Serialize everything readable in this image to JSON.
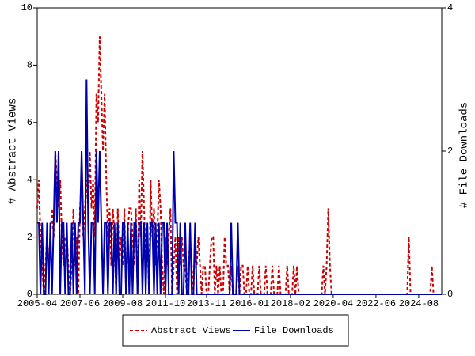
{
  "chart_data": {
    "type": "line",
    "x": [
      "2005-04",
      "2005-05",
      "2005-06",
      "2005-07",
      "2005-08",
      "2005-09",
      "2005-10",
      "2005-11",
      "2005-12",
      "2006-01",
      "2006-02",
      "2006-03",
      "2006-04",
      "2006-05",
      "2006-06",
      "2006-07",
      "2006-08",
      "2006-09",
      "2006-10",
      "2006-11",
      "2006-12",
      "2007-01",
      "2007-02",
      "2007-03",
      "2007-04",
      "2007-05",
      "2007-06",
      "2007-07",
      "2007-08",
      "2007-09",
      "2007-10",
      "2007-11",
      "2007-12",
      "2008-01",
      "2008-02",
      "2008-03",
      "2008-04",
      "2008-05",
      "2008-06",
      "2008-07",
      "2008-08",
      "2008-09",
      "2008-10",
      "2008-11",
      "2008-12",
      "2009-01",
      "2009-02",
      "2009-03",
      "2009-04",
      "2009-05",
      "2009-06",
      "2009-07",
      "2009-08",
      "2009-09",
      "2009-10",
      "2009-11",
      "2009-12",
      "2010-01",
      "2010-02",
      "2010-03",
      "2010-04",
      "2010-05",
      "2010-06",
      "2010-07",
      "2010-08",
      "2010-09",
      "2010-10",
      "2010-11",
      "2010-12",
      "2011-01",
      "2011-02",
      "2011-03",
      "2011-04",
      "2011-05",
      "2011-06",
      "2011-07",
      "2011-08",
      "2011-09",
      "2011-10",
      "2011-11",
      "2011-12",
      "2012-01",
      "2012-02",
      "2012-03",
      "2012-04",
      "2012-05",
      "2012-06",
      "2012-07",
      "2012-08",
      "2012-09",
      "2012-10",
      "2012-11",
      "2012-12",
      "2013-01",
      "2013-02",
      "2013-03",
      "2013-04",
      "2013-05",
      "2013-06",
      "2013-07",
      "2013-08",
      "2013-09",
      "2013-10",
      "2013-11",
      "2013-12",
      "2014-01",
      "2014-02",
      "2014-03",
      "2014-04",
      "2014-05",
      "2014-06",
      "2014-07",
      "2014-08",
      "2014-09",
      "2014-10",
      "2014-11",
      "2014-12",
      "2015-01",
      "2015-02",
      "2015-03",
      "2015-04",
      "2015-05",
      "2015-06",
      "2015-07",
      "2015-08",
      "2015-09",
      "2015-10",
      "2015-11",
      "2015-12",
      "2016-01",
      "2016-02",
      "2016-03",
      "2016-04",
      "2016-05",
      "2016-06",
      "2016-07",
      "2016-08",
      "2016-09",
      "2016-10",
      "2016-11",
      "2016-12",
      "2017-01",
      "2017-02",
      "2017-03",
      "2017-04",
      "2017-05",
      "2017-06",
      "2017-07",
      "2017-08",
      "2017-09",
      "2017-10",
      "2017-11",
      "2017-12",
      "2018-01",
      "2018-02",
      "2018-03",
      "2018-04",
      "2018-05",
      "2018-06",
      "2018-07",
      "2018-08",
      "2018-09",
      "2018-10",
      "2018-11",
      "2018-12",
      "2019-01",
      "2019-02",
      "2019-03",
      "2019-04",
      "2019-05",
      "2019-06",
      "2019-07",
      "2019-08",
      "2019-09",
      "2019-10",
      "2019-11",
      "2019-12",
      "2020-01",
      "2020-02",
      "2020-03",
      "2020-04",
      "2020-05",
      "2020-06",
      "2020-07",
      "2020-08",
      "2020-09",
      "2020-10",
      "2020-11",
      "2020-12",
      "2021-01",
      "2021-02",
      "2021-03",
      "2021-04",
      "2021-05",
      "2021-06",
      "2021-07",
      "2021-08",
      "2021-09",
      "2021-10",
      "2021-11",
      "2021-12",
      "2022-01",
      "2022-02",
      "2022-03",
      "2022-04",
      "2022-05",
      "2022-06",
      "2022-07",
      "2022-08",
      "2022-09",
      "2022-10",
      "2022-11",
      "2022-12",
      "2023-01",
      "2023-02",
      "2023-03",
      "2023-04",
      "2023-05",
      "2023-06",
      "2023-07",
      "2023-08",
      "2023-09",
      "2023-10",
      "2023-11",
      "2023-12",
      "2024-01",
      "2024-02",
      "2024-03",
      "2024-04",
      "2024-05",
      "2024-06",
      "2024-07",
      "2024-08",
      "2024-09",
      "2024-10",
      "2024-11",
      "2024-12",
      "2025-01",
      "2025-02",
      "2025-03",
      "2025-04",
      "2025-05",
      "2025-06",
      "2025-07",
      "2025-08",
      "2025-09",
      "2025-10"
    ],
    "xticks": [
      "2005-04",
      "2007-06",
      "2009-08",
      "2011-10",
      "2013-11",
      "2016-01",
      "2018-02",
      "2020-04",
      "2022-06",
      "2024-08"
    ],
    "ylabel": "# Abstract Views",
    "y2label": "# File Downloads",
    "ylim": [
      0,
      10
    ],
    "yticks": [
      0,
      2,
      4,
      6,
      8,
      10
    ],
    "y2lim": [
      0,
      4
    ],
    "y2ticks": [
      0,
      2,
      4
    ],
    "series": [
      {
        "name": "Abstract Views",
        "color": "#cc0000",
        "dashed": true,
        "values": [
          3,
          4,
          2,
          1,
          0,
          1,
          2,
          1,
          2,
          3,
          2,
          5,
          4,
          3,
          4,
          2,
          1,
          2,
          2,
          1,
          0,
          1,
          3,
          1,
          2,
          0,
          3,
          4,
          2,
          3,
          4,
          3,
          5,
          3,
          4,
          2,
          7,
          6,
          9,
          7,
          5,
          7,
          4,
          2,
          3,
          1,
          3,
          2,
          0,
          3,
          1,
          2,
          1,
          3,
          0,
          2,
          3,
          3,
          2,
          1,
          3,
          0,
          4,
          2,
          5,
          3,
          1,
          2,
          0,
          4,
          2,
          3,
          1,
          2,
          4,
          3,
          1,
          0,
          2,
          1,
          2,
          3,
          0,
          1,
          2,
          0,
          2,
          1,
          2,
          1,
          1,
          0,
          1,
          2,
          1,
          0,
          2,
          1,
          2,
          1,
          0,
          1,
          1,
          0,
          0,
          1,
          2,
          2,
          0,
          1,
          0,
          1,
          0,
          0,
          2,
          1,
          1,
          0,
          1,
          0,
          0,
          0,
          1,
          0,
          1,
          1,
          0,
          0,
          1,
          0,
          0,
          1,
          0,
          0,
          0,
          1,
          0,
          0,
          0,
          1,
          0,
          0,
          0,
          1,
          0,
          0,
          0,
          1,
          0,
          0,
          0,
          0,
          1,
          0,
          0,
          0,
          1,
          0,
          1,
          0,
          0,
          0,
          0,
          0,
          0,
          0,
          0,
          0,
          0,
          0,
          0,
          0,
          0,
          0,
          1,
          0,
          1,
          3,
          1,
          0,
          0,
          0,
          0,
          0,
          0,
          0,
          0,
          0,
          0,
          0,
          0,
          0,
          0,
          0,
          0,
          0,
          0,
          0,
          0,
          0,
          0,
          0,
          0,
          0,
          0,
          0,
          0,
          0,
          0,
          0,
          0,
          0,
          0,
          0,
          0,
          0,
          0,
          0,
          0,
          0,
          0,
          0,
          0,
          0,
          0,
          0,
          2,
          0,
          0,
          0,
          0,
          0,
          0,
          0,
          0,
          0,
          0,
          0,
          0,
          0,
          1,
          0,
          0,
          0,
          0,
          0,
          0
        ]
      },
      {
        "name": "File Downloads",
        "color": "#0000aa",
        "axis": "y2",
        "values": [
          1,
          1,
          0,
          1,
          0,
          0,
          1,
          0,
          1,
          0,
          1,
          2,
          1,
          2,
          0,
          1,
          1,
          0,
          1,
          0,
          0,
          1,
          0,
          1,
          0,
          1,
          1,
          2,
          1,
          0,
          3,
          1,
          0,
          1,
          1,
          0,
          2,
          1,
          2,
          1,
          0,
          1,
          1,
          0,
          1,
          1,
          0,
          1,
          0,
          1,
          0,
          0,
          1,
          1,
          0,
          1,
          0,
          1,
          0,
          1,
          1,
          0,
          1,
          1,
          0,
          1,
          0,
          1,
          0,
          1,
          1,
          0,
          1,
          0,
          1,
          0,
          1,
          1,
          0,
          1,
          0,
          0,
          0,
          2,
          1,
          1,
          0,
          1,
          0,
          0,
          1,
          0,
          0,
          1,
          0,
          0,
          1,
          0,
          0,
          0,
          0,
          0,
          0,
          0,
          0,
          0,
          0,
          0,
          0,
          0,
          0,
          0,
          0,
          0,
          0,
          0,
          0,
          0,
          1,
          0,
          0,
          0,
          1,
          0,
          0,
          0,
          0,
          0,
          0,
          0,
          0,
          0,
          0,
          0,
          0,
          0,
          0,
          0,
          0,
          0,
          0,
          0,
          0,
          0,
          0,
          0,
          0,
          0,
          0,
          0,
          0,
          0,
          0,
          0,
          0,
          0,
          0,
          0,
          0,
          0,
          0,
          0,
          0,
          0,
          0,
          0,
          0,
          0,
          0,
          0,
          0,
          0,
          0,
          0,
          0,
          0,
          0,
          0,
          0,
          0,
          0,
          0,
          0,
          0,
          0,
          0,
          0,
          0,
          0,
          0,
          0,
          0,
          0,
          0,
          0,
          0,
          0,
          0,
          0,
          0,
          0,
          0,
          0,
          0,
          0,
          0,
          0,
          0,
          0,
          0,
          0,
          0,
          0,
          0,
          0,
          0,
          0,
          0,
          0,
          0,
          0,
          0,
          0,
          0,
          0,
          0,
          0,
          0,
          0,
          0,
          0,
          0,
          0,
          0,
          0,
          0,
          0,
          0,
          0,
          0,
          0,
          0,
          0,
          0,
          0,
          0,
          0
        ]
      }
    ]
  }
}
